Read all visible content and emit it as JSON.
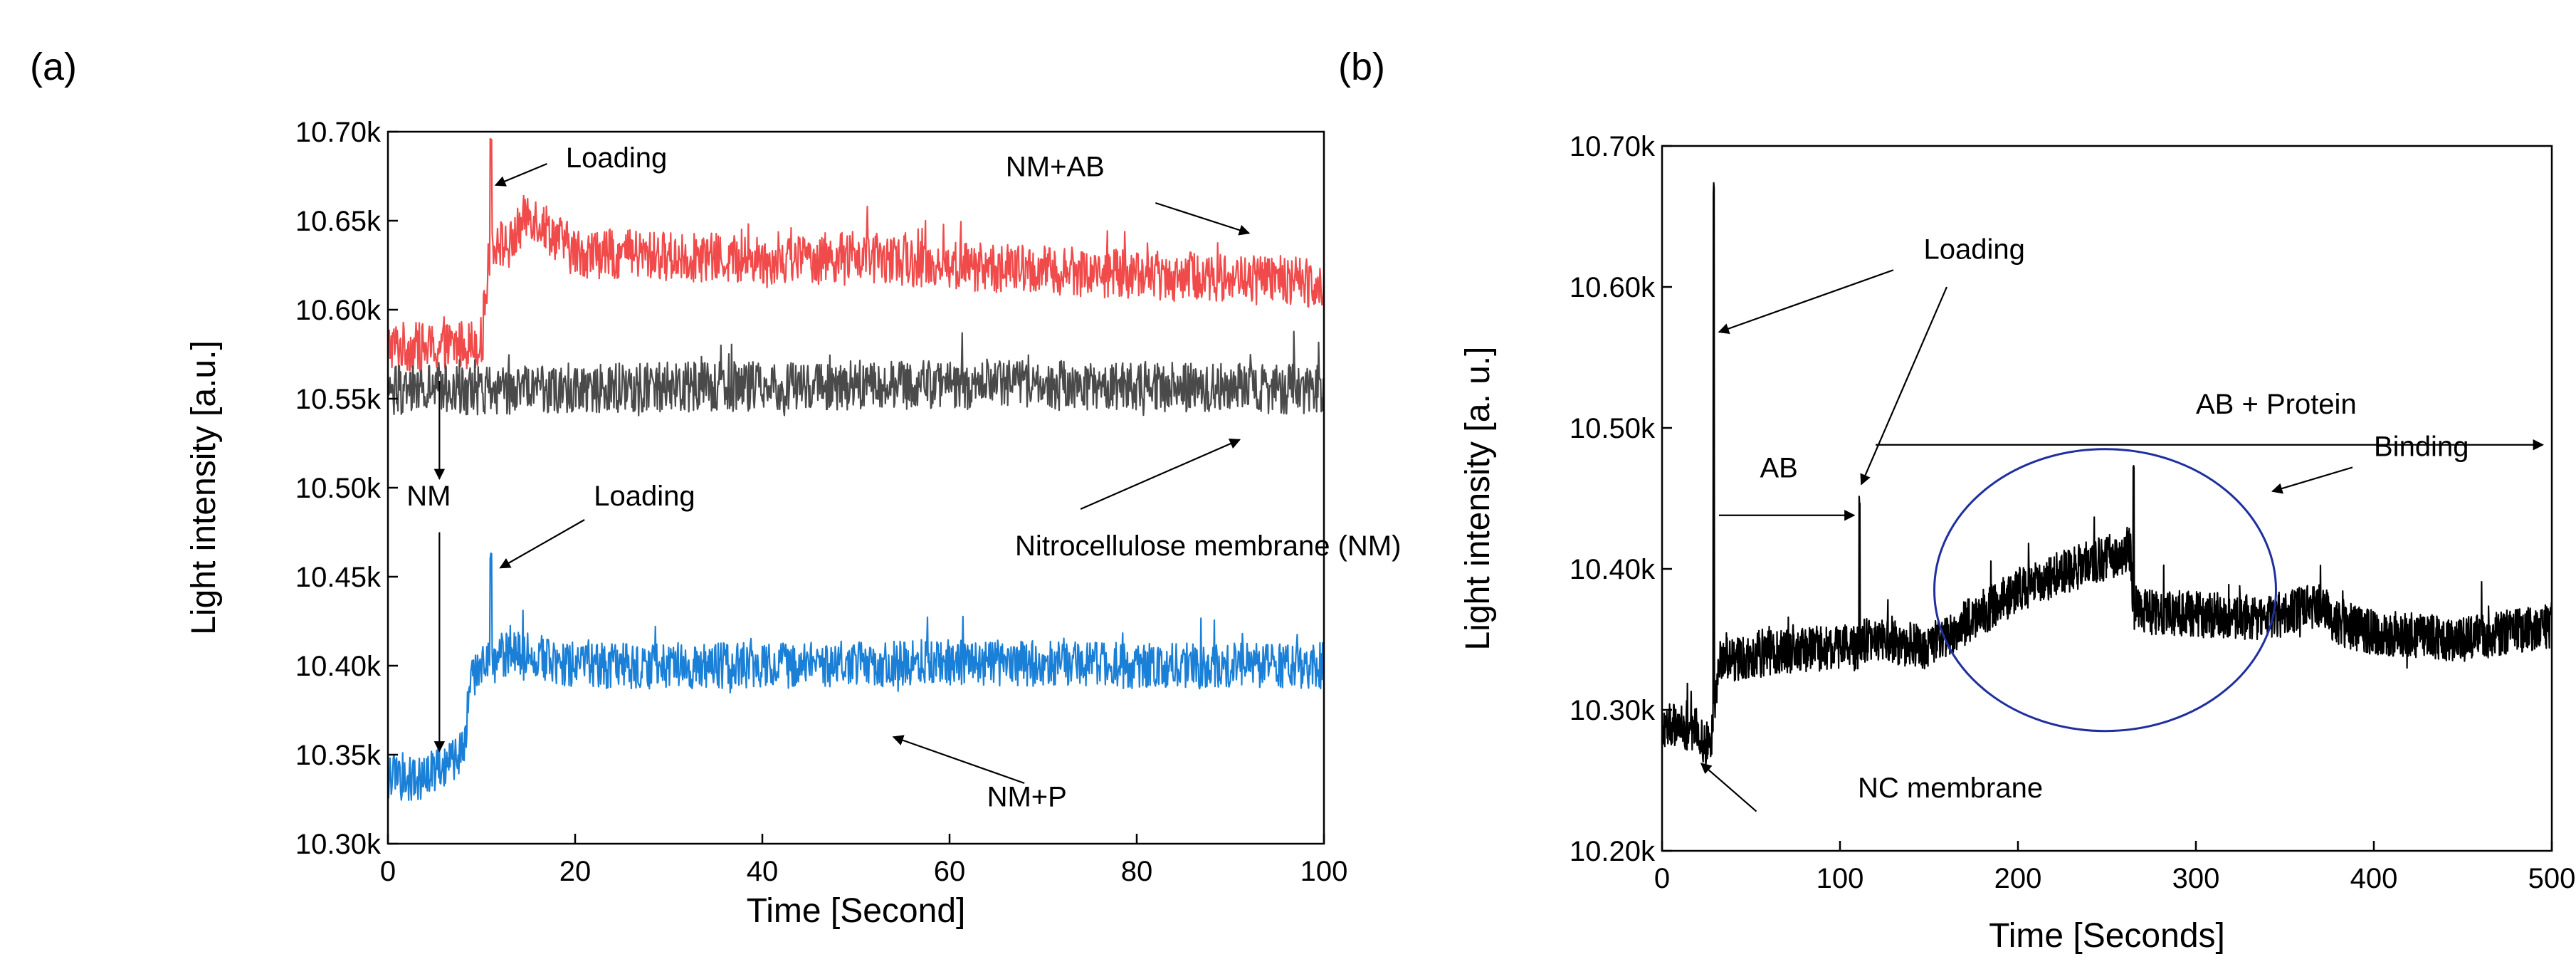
{
  "panel_labels": {
    "a": "(a)",
    "b": "(b)"
  },
  "colors": {
    "nm_ab": "#f04a4a",
    "nm": "#4a4a4a",
    "nm_p": "#1a7fd6",
    "trace_b": "#000000",
    "ellipse": "#1f2f9e"
  },
  "chart_data": [
    {
      "type": "line",
      "panel": "(a)",
      "xlabel": "Time [Second]",
      "ylabel": "Light intensity [a.u.]",
      "xlim": [
        0,
        100
      ],
      "ylim": [
        10300,
        10700
      ],
      "xticks": [
        0,
        20,
        40,
        60,
        80,
        100
      ],
      "xtick_labels": [
        "0",
        "20",
        "40",
        "60",
        "80",
        "100"
      ],
      "yticks": [
        10300,
        10350,
        10400,
        10450,
        10500,
        10550,
        10600,
        10650,
        10700
      ],
      "ytick_labels": [
        "10.30k",
        "10.35k",
        "10.40k",
        "10.45k",
        "10.50k",
        "10.55k",
        "10.60k",
        "10.65k",
        "10.70k"
      ],
      "series": [
        {
          "name": "NM+AB",
          "color": "#f04a4a",
          "x": [
            0,
            5,
            10,
            11,
            13,
            15,
            20,
            30,
            40,
            50,
            60,
            70,
            80,
            90,
            100
          ],
          "y": [
            10580,
            10578,
            10582,
            10640,
            10635,
            10655,
            10632,
            10630,
            10628,
            10630,
            10625,
            10622,
            10620,
            10618,
            10615
          ],
          "noise": 14,
          "spike": {
            "x": 11,
            "y": 10700
          }
        },
        {
          "name": "Nitrocellulose membrane (NM)",
          "color": "#4a4a4a",
          "x": [
            0,
            10,
            20,
            40,
            60,
            80,
            100
          ],
          "y": [
            10555,
            10555,
            10556,
            10557,
            10558,
            10557,
            10555
          ],
          "noise": 14,
          "spike": null
        },
        {
          "name": "NM+P",
          "color": "#1a7fd6",
          "x": [
            0,
            3,
            6,
            8,
            9,
            11,
            13,
            20,
            40,
            60,
            80,
            100
          ],
          "y": [
            10338,
            10335,
            10345,
            10350,
            10395,
            10402,
            10408,
            10400,
            10400,
            10402,
            10400,
            10400
          ],
          "noise": 13,
          "spike": {
            "x": 11,
            "y": 10465
          }
        }
      ],
      "annotations": [
        {
          "text": "Loading",
          "x": 19,
          "y": 10680,
          "arrow_from": [
            17,
            10682
          ],
          "arrow_to": [
            11.5,
            10670
          ]
        },
        {
          "text": "NM+AB",
          "x": 66,
          "y": 10675,
          "arrow_from": [
            82,
            10660
          ],
          "arrow_to": [
            92,
            10643
          ]
        },
        {
          "text": "NM",
          "x": 2,
          "y": 10490,
          "arrow_from": [
            5.5,
            10560
          ],
          "arrow_to": [
            5.5,
            10505
          ],
          "arrow2_from": [
            5.5,
            10475
          ],
          "arrow2_to": [
            5.5,
            10352
          ]
        },
        {
          "text": "Loading",
          "x": 22,
          "y": 10490,
          "arrow_from": [
            21,
            10482
          ],
          "arrow_to": [
            12,
            10455
          ]
        },
        {
          "text": "Nitrocellulose membrane (NM)",
          "x": 67,
          "y": 10462,
          "arrow_from": [
            74,
            10488
          ],
          "arrow_to": [
            91,
            10527
          ]
        },
        {
          "text": "NM+P",
          "x": 64,
          "y": 10321,
          "arrow_from": [
            68,
            10334
          ],
          "arrow_to": [
            54,
            10360
          ]
        }
      ]
    },
    {
      "type": "line",
      "panel": "(b)",
      "xlabel": "Time [Seconds]",
      "ylabel": "Light intensity [a. u.]",
      "xlim": [
        0,
        500
      ],
      "ylim": [
        10200,
        10700
      ],
      "xticks": [
        0,
        100,
        200,
        300,
        400,
        500
      ],
      "xtick_labels": [
        "0",
        "100",
        "200",
        "300",
        "400",
        "500"
      ],
      "yticks": [
        10200,
        10300,
        10400,
        10500,
        10600,
        10700
      ],
      "ytick_labels": [
        "10.20k",
        "10.30k",
        "10.40k",
        "10.50k",
        "10.60k",
        "10.70k"
      ],
      "series": [
        {
          "name": "Light intensity",
          "color": "#000000",
          "x": [
            0,
            20,
            27,
            32,
            60,
            100,
            110,
            112,
            150,
            175,
            200,
            230,
            255,
            263,
            265,
            300,
            340,
            370,
            380,
            400,
            450,
            500
          ],
          "y": [
            10290,
            10285,
            10270,
            10335,
            10340,
            10345,
            10343,
            10350,
            10345,
            10365,
            10385,
            10400,
            10410,
            10415,
            10370,
            10368,
            10365,
            10375,
            10360,
            10355,
            10350,
            10360
          ],
          "noise": 16,
          "spikes": [
            {
              "x": 29,
              "y": 10675
            },
            {
              "x": 111,
              "y": 10455
            },
            {
              "x": 265,
              "y": 10480
            }
          ]
        }
      ],
      "annotations": [
        {
          "text": "Loading",
          "x": 147,
          "y": 10620,
          "arrow1_from": [
            130,
            10612
          ],
          "arrow1_to": [
            32,
            10568
          ],
          "arrow2_from": [
            160,
            10600
          ],
          "arrow2_to": [
            112,
            10460
          ]
        },
        {
          "text": "AB + Protein",
          "x": 300,
          "y": 10510,
          "arrow_from": [
            120,
            10488
          ],
          "arrow_to": [
            495,
            10488
          ]
        },
        {
          "text": "AB",
          "x": 55,
          "y": 10465,
          "arrow_from": [
            32,
            10438
          ],
          "arrow_to": [
            108,
            10438
          ]
        },
        {
          "text": "Binding",
          "x": 400,
          "y": 10480,
          "arrow_from": [
            388,
            10472
          ],
          "arrow_to": [
            343,
            10455
          ]
        },
        {
          "text": "NC membrane",
          "x": 110,
          "y": 10238,
          "arrow_from": [
            53,
            10228
          ],
          "arrow_to": [
            22,
            10262
          ]
        }
      ],
      "ellipse": {
        "cx": 249,
        "cy": 10385,
        "rx": 96,
        "ry": 100,
        "label": "Binding"
      }
    }
  ]
}
